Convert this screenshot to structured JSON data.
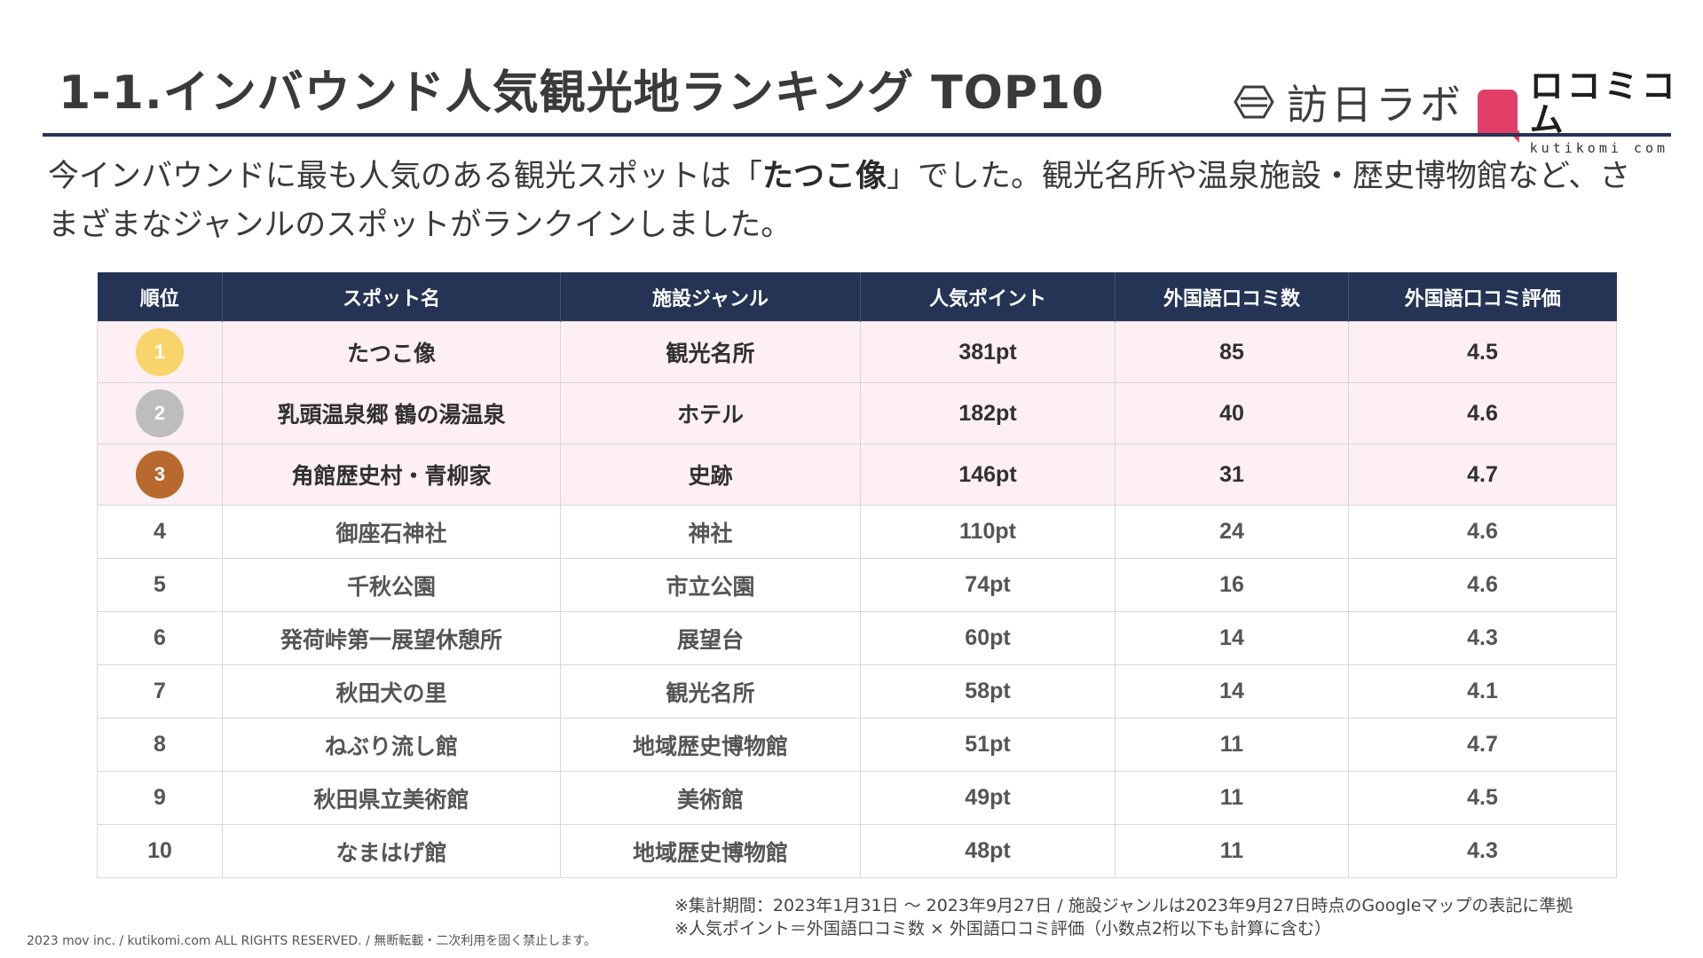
{
  "title": "1-1.インバウンド人気観光地ランキング TOP10",
  "logos": {
    "primary": "訪日ラボ",
    "secondary": "ロコミコム",
    "secondary_sub": "kutikomi com",
    "secondary_color": "#e23f68"
  },
  "intro": {
    "before": "今インバウンドに最も人気のある観光スポットは「",
    "highlight": "たつこ像",
    "after": "」でした。観光名所や温泉施設・歴史博物館など、さまざまなジャンルのスポットがランクインしました。"
  },
  "colors": {
    "header_bg": "#253454",
    "top3_bg": "#fdeff4",
    "gold": "#f8d46a",
    "silver": "#bdbdbd",
    "bronze": "#b86a2e"
  },
  "table": {
    "headers": [
      "順位",
      "スポット名",
      "施設ジャンル",
      "人気ポイント",
      "外国語口コミ数",
      "外国語口コミ評価"
    ],
    "rows": [
      {
        "rank": "1",
        "name": "たつこ像",
        "genre": "観光名所",
        "points": "381pt",
        "reviews": "85",
        "rating": "4.5"
      },
      {
        "rank": "2",
        "name": "乳頭温泉郷 鶴の湯温泉",
        "genre": "ホテル",
        "points": "182pt",
        "reviews": "40",
        "rating": "4.6"
      },
      {
        "rank": "3",
        "name": "角館歴史村・青柳家",
        "genre": "史跡",
        "points": "146pt",
        "reviews": "31",
        "rating": "4.7"
      },
      {
        "rank": "4",
        "name": "御座石神社",
        "genre": "神社",
        "points": "110pt",
        "reviews": "24",
        "rating": "4.6"
      },
      {
        "rank": "5",
        "name": "千秋公園",
        "genre": "市立公園",
        "points": "74pt",
        "reviews": "16",
        "rating": "4.6"
      },
      {
        "rank": "6",
        "name": "発荷峠第一展望休憩所",
        "genre": "展望台",
        "points": "60pt",
        "reviews": "14",
        "rating": "4.3"
      },
      {
        "rank": "7",
        "name": "秋田犬の里",
        "genre": "観光名所",
        "points": "58pt",
        "reviews": "14",
        "rating": "4.1"
      },
      {
        "rank": "8",
        "name": "ねぶり流し館",
        "genre": "地域歴史博物館",
        "points": "51pt",
        "reviews": "11",
        "rating": "4.7"
      },
      {
        "rank": "9",
        "name": "秋田県立美術館",
        "genre": "美術館",
        "points": "49pt",
        "reviews": "11",
        "rating": "4.5"
      },
      {
        "rank": "10",
        "name": "なまはげ館",
        "genre": "地域歴史博物館",
        "points": "48pt",
        "reviews": "11",
        "rating": "4.3"
      }
    ]
  },
  "footnotes": [
    "※集計期間：2023年1月31日 〜 2023年9月27日 / 施設ジャンルは2023年9月27日時点のGoogleマップの表記に準拠",
    "※人気ポイント＝外国語口コミ数 × 外国語口コミ評価（小数点2桁以下も計算に含む）"
  ],
  "copyright": "2023 mov inc. / kutikomi.com ALL RIGHTS RESERVED. / 無断転載・二次利用を固く禁止します。"
}
